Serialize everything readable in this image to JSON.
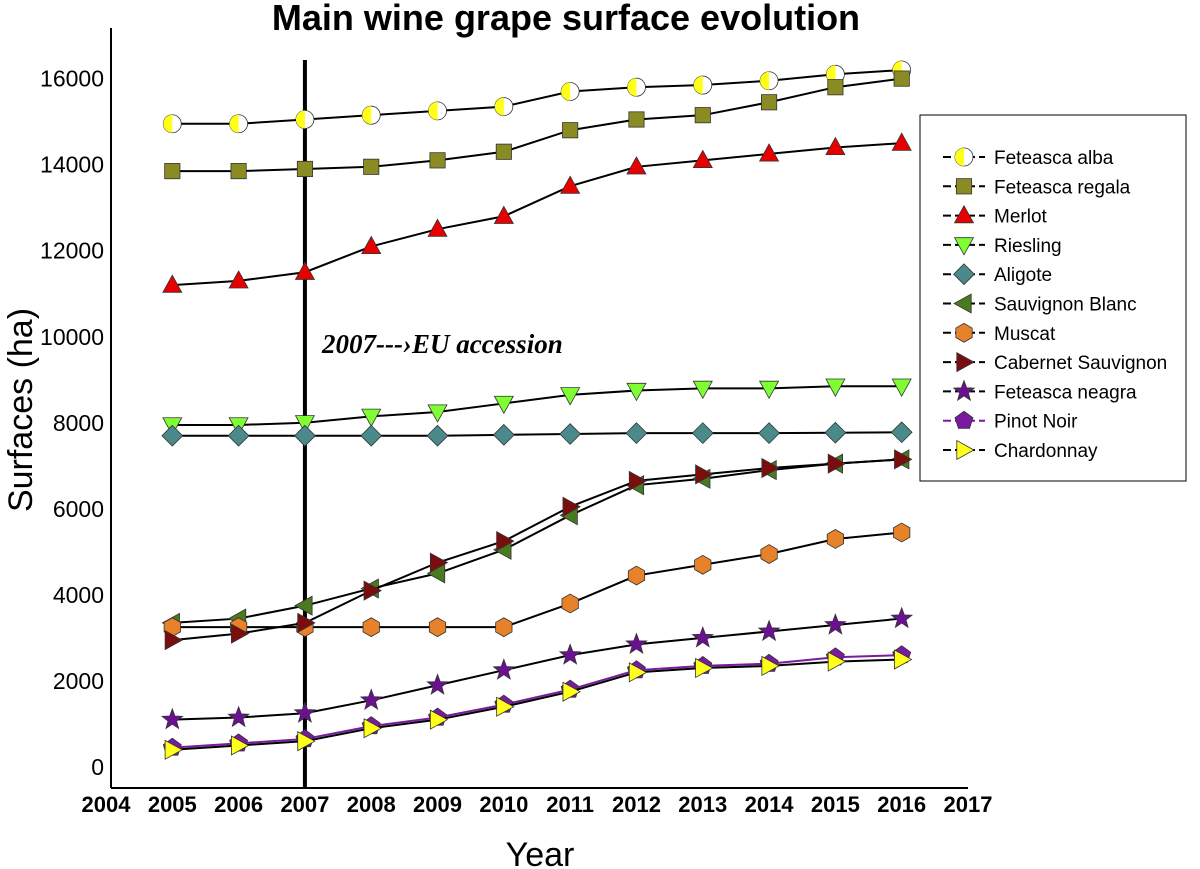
{
  "chart_data": {
    "type": "line",
    "title": "Main wine grape surface evolution",
    "xlabel": "Year",
    "ylabel": "Surfaces (ha)",
    "xlim": [
      2004,
      2017
    ],
    "ylim": [
      0,
      16500
    ],
    "x_ticks": [
      2004,
      2005,
      2006,
      2007,
      2008,
      2009,
      2010,
      2011,
      2012,
      2013,
      2014,
      2015,
      2016,
      2017
    ],
    "y_ticks": [
      0,
      2000,
      4000,
      6000,
      8000,
      10000,
      12000,
      14000,
      16000
    ],
    "grid": false,
    "legend_position": "right",
    "x": [
      2005,
      2006,
      2007,
      2008,
      2009,
      2010,
      2011,
      2012,
      2013,
      2014,
      2015,
      2016
    ],
    "annotation": {
      "text": "2007---›EU accession",
      "x": 2007
    },
    "vertical_line_x": 2007,
    "series": [
      {
        "name": "Feteasca alba",
        "marker": "half-circle",
        "color": "#ffff1a",
        "values": [
          14950,
          14950,
          15050,
          15150,
          15250,
          15350,
          15700,
          15800,
          15850,
          15950,
          16100,
          16200
        ]
      },
      {
        "name": "Feteasca regala",
        "marker": "square",
        "color": "#8b8b23",
        "values": [
          13850,
          13850,
          13900,
          13950,
          14100,
          14300,
          14800,
          15050,
          15150,
          15450,
          15800,
          16000
        ]
      },
      {
        "name": "Merlot",
        "marker": "triangle-up",
        "color": "#e60000",
        "values": [
          11200,
          11300,
          11500,
          12100,
          12500,
          12800,
          13500,
          13950,
          14100,
          14250,
          14400,
          14500
        ]
      },
      {
        "name": "Riesling",
        "marker": "triangle-down",
        "color": "#7fff33",
        "values": [
          7950,
          7950,
          8000,
          8150,
          8250,
          8450,
          8650,
          8750,
          8800,
          8800,
          8850,
          8850
        ]
      },
      {
        "name": "Aligote",
        "marker": "diamond",
        "color": "#4a8a8a",
        "values": [
          7700,
          7700,
          7700,
          7700,
          7700,
          7720,
          7740,
          7760,
          7760,
          7760,
          7770,
          7780
        ]
      },
      {
        "name": "Sauvignon Blanc",
        "marker": "triangle-left",
        "color": "#4a7a1f",
        "values": [
          3350,
          3450,
          3750,
          4150,
          4500,
          5050,
          5850,
          6550,
          6700,
          6900,
          7050,
          7150
        ]
      },
      {
        "name": "Muscat",
        "marker": "hexagon",
        "color": "#e8822a",
        "values": [
          3250,
          3250,
          3250,
          3250,
          3250,
          3250,
          3800,
          4450,
          4700,
          4950,
          5300,
          5450
        ]
      },
      {
        "name": "Cabernet Sauvignon",
        "marker": "triangle-right",
        "color": "#7a0e0e",
        "values": [
          2950,
          3100,
          3350,
          4100,
          4750,
          5250,
          6050,
          6650,
          6800,
          6950,
          7050,
          7150
        ]
      },
      {
        "name": "Feteasca neagra",
        "marker": "star",
        "color": "#6a1090",
        "values": [
          1100,
          1150,
          1250,
          1550,
          1900,
          2250,
          2600,
          2850,
          3000,
          3150,
          3300,
          3450
        ]
      },
      {
        "name": "Pinot Noir",
        "marker": "pentagon",
        "color": "#7a1aa0",
        "values": [
          450,
          550,
          650,
          950,
          1150,
          1450,
          1800,
          2250,
          2350,
          2400,
          2550,
          2600
        ]
      },
      {
        "name": "Chardonnay",
        "marker": "triangle-right",
        "color": "#ffff1a",
        "values": [
          400,
          500,
          600,
          900,
          1100,
          1400,
          1750,
          2200,
          2300,
          2350,
          2450,
          2500
        ]
      }
    ]
  }
}
